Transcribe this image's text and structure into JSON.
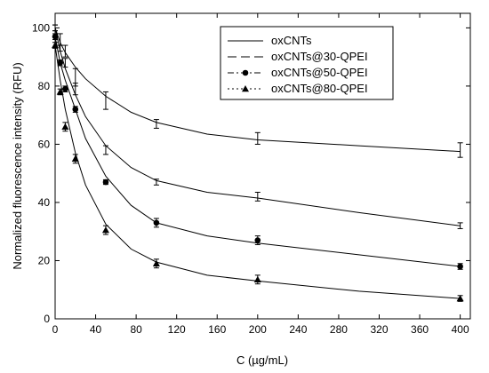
{
  "chart_data": {
    "type": "line",
    "title": "",
    "xlabel": "C (µg/mL)",
    "ylabel": "Normalized fluorescence intensity (RFU)",
    "xlim": [
      0,
      410
    ],
    "ylim": [
      0,
      105
    ],
    "x_ticks": [
      0,
      40,
      80,
      120,
      160,
      200,
      240,
      280,
      320,
      360,
      400
    ],
    "y_ticks": [
      0,
      20,
      40,
      60,
      80,
      100
    ],
    "grid": false,
    "legend_position": "top-right",
    "series": [
      {
        "name": "oxCNTs",
        "marker": "none",
        "line_style": "solid",
        "points": [
          {
            "x": 0,
            "y": 100,
            "err": 1
          },
          {
            "x": 5,
            "y": 96,
            "err": 2
          },
          {
            "x": 10,
            "y": 92,
            "err": 2
          },
          {
            "x": 20,
            "y": 83,
            "err": 3
          },
          {
            "x": 50,
            "y": 75,
            "err": 3
          },
          {
            "x": 100,
            "y": 67,
            "err": 1.5
          },
          {
            "x": 200,
            "y": 62,
            "err": 2
          },
          {
            "x": 400,
            "y": 58,
            "err": 2.5
          }
        ],
        "fit": [
          [
            0,
            100
          ],
          [
            5,
            95
          ],
          [
            10,
            91.5
          ],
          [
            20,
            86.5
          ],
          [
            30,
            82.5
          ],
          [
            50,
            76.5
          ],
          [
            75,
            71
          ],
          [
            100,
            67.5
          ],
          [
            150,
            63.5
          ],
          [
            200,
            61.5
          ],
          [
            300,
            59.5
          ],
          [
            400,
            57.5
          ]
        ]
      },
      {
        "name": "oxCNTs@30-QPEI",
        "marker": "none",
        "line_style": "dash",
        "points": [
          {
            "x": 0,
            "y": 100,
            "err": 1
          },
          {
            "x": 5,
            "y": 93,
            "err": 1
          },
          {
            "x": 10,
            "y": 88,
            "err": 1.5
          },
          {
            "x": 20,
            "y": 79,
            "err": 2
          },
          {
            "x": 50,
            "y": 58,
            "err": 1.5
          },
          {
            "x": 100,
            "y": 47,
            "err": 1
          },
          {
            "x": 200,
            "y": 42,
            "err": 1.5
          },
          {
            "x": 400,
            "y": 32,
            "err": 1
          }
        ],
        "fit": [
          [
            0,
            100
          ],
          [
            5,
            92
          ],
          [
            10,
            86
          ],
          [
            20,
            77
          ],
          [
            30,
            69.5
          ],
          [
            50,
            59.5
          ],
          [
            75,
            52
          ],
          [
            100,
            47.5
          ],
          [
            150,
            43.5
          ],
          [
            200,
            41.5
          ],
          [
            300,
            36.5
          ],
          [
            400,
            32
          ]
        ]
      },
      {
        "name": "oxCNTs@50-QPEI",
        "marker": "circle",
        "line_style": "dash-dot",
        "points": [
          {
            "x": 0,
            "y": 97,
            "err": 1
          },
          {
            "x": 5,
            "y": 88,
            "err": 1
          },
          {
            "x": 10,
            "y": 79,
            "err": 1
          },
          {
            "x": 20,
            "y": 72,
            "err": 1
          },
          {
            "x": 50,
            "y": 47,
            "err": 0.8
          },
          {
            "x": 100,
            "y": 33,
            "err": 1.5
          },
          {
            "x": 200,
            "y": 27,
            "err": 1.5
          },
          {
            "x": 400,
            "y": 18,
            "err": 1
          }
        ],
        "fit": [
          [
            0,
            97
          ],
          [
            5,
            88
          ],
          [
            10,
            82
          ],
          [
            20,
            72
          ],
          [
            30,
            62
          ],
          [
            50,
            49
          ],
          [
            75,
            39
          ],
          [
            100,
            33
          ],
          [
            150,
            28.5
          ],
          [
            200,
            26
          ],
          [
            300,
            22
          ],
          [
            400,
            18
          ]
        ]
      },
      {
        "name": "oxCNTs@80-QPEI",
        "marker": "triangle",
        "line_style": "dot",
        "points": [
          {
            "x": 0,
            "y": 94,
            "err": 1
          },
          {
            "x": 5,
            "y": 78,
            "err": 1
          },
          {
            "x": 10,
            "y": 66,
            "err": 1.5
          },
          {
            "x": 20,
            "y": 55,
            "err": 1.5
          },
          {
            "x": 50,
            "y": 30.5,
            "err": 1.5
          },
          {
            "x": 100,
            "y": 19,
            "err": 1.5
          },
          {
            "x": 200,
            "y": 13.5,
            "err": 1.5
          },
          {
            "x": 400,
            "y": 7,
            "err": 1
          }
        ],
        "fit": [
          [
            0,
            94
          ],
          [
            5,
            82
          ],
          [
            10,
            72
          ],
          [
            20,
            57
          ],
          [
            30,
            46
          ],
          [
            50,
            32.5
          ],
          [
            75,
            24
          ],
          [
            100,
            19.5
          ],
          [
            150,
            15
          ],
          [
            200,
            13
          ],
          [
            300,
            9.5
          ],
          [
            400,
            7
          ]
        ]
      }
    ]
  }
}
